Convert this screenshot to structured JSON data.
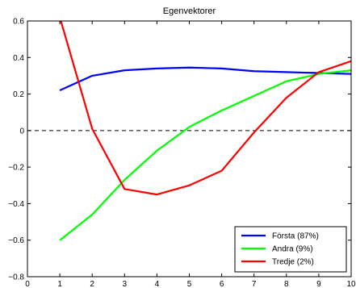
{
  "chart_data": {
    "type": "line",
    "title": "Egenvektorer",
    "xlabel": "",
    "ylabel": "",
    "xlim": [
      0,
      10
    ],
    "ylim": [
      -0.8,
      0.6
    ],
    "xticks": [
      0,
      1,
      2,
      3,
      4,
      5,
      6,
      7,
      8,
      9,
      10
    ],
    "yticks": [
      -0.8,
      -0.6,
      -0.4,
      -0.2,
      0,
      0.2,
      0.4,
      0.6
    ],
    "ytick_labels": [
      "−0.8",
      "−0.6",
      "−0.4",
      "−0.2",
      "0",
      "0.2",
      "0.4",
      "0.6"
    ],
    "grid": false,
    "zero_line": {
      "y": 0,
      "style": "dashed",
      "color": "#000000"
    },
    "legend_position": "bottom-right",
    "x": [
      1,
      2,
      3,
      4,
      5,
      6,
      7,
      8,
      9,
      10
    ],
    "series": [
      {
        "name": "Första (87%)",
        "color": "#0000ff",
        "values": [
          0.22,
          0.3,
          0.33,
          0.34,
          0.345,
          0.34,
          0.325,
          0.32,
          0.315,
          0.31
        ]
      },
      {
        "name": "Andra (9%)",
        "color": "#00ff00",
        "values": [
          -0.6,
          -0.46,
          -0.27,
          -0.11,
          0.02,
          0.11,
          0.19,
          0.27,
          0.31,
          0.33
        ]
      },
      {
        "name": "Tredje (2%)",
        "color": "#ff0000",
        "values": [
          0.62,
          0.01,
          -0.32,
          -0.35,
          -0.3,
          -0.22,
          -0.01,
          0.18,
          0.32,
          0.38
        ]
      }
    ]
  }
}
